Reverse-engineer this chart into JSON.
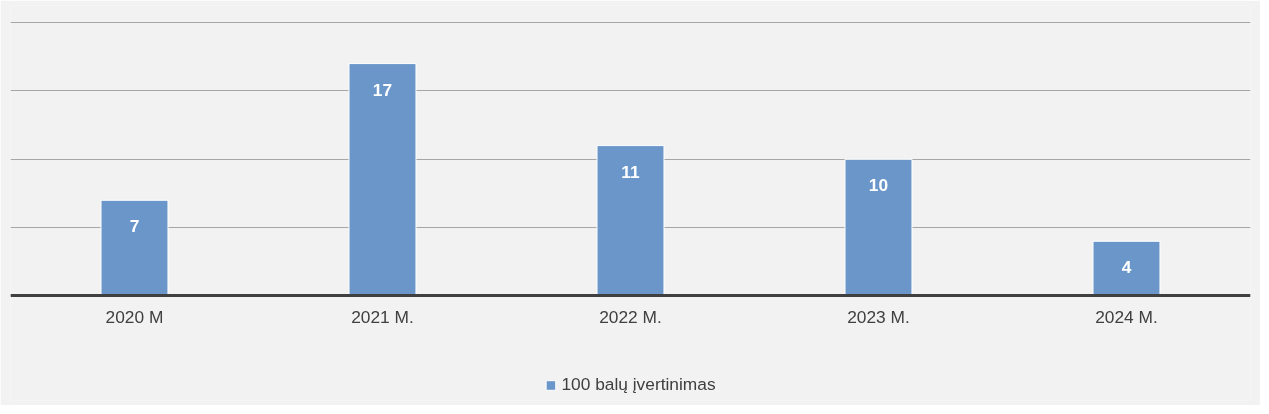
{
  "chart_data": {
    "type": "bar",
    "categories": [
      "2020 M",
      "2021 M.",
      "2022 M.",
      "2023 M.",
      "2024 M."
    ],
    "series": [
      {
        "name": "100 balų įvertinimas",
        "color": "#6a96c9",
        "values": [
          7,
          17,
          11,
          10,
          4
        ]
      }
    ],
    "grid": "y",
    "legend": "bottom",
    "tick_labels": "x",
    "data_labels": true
  }
}
